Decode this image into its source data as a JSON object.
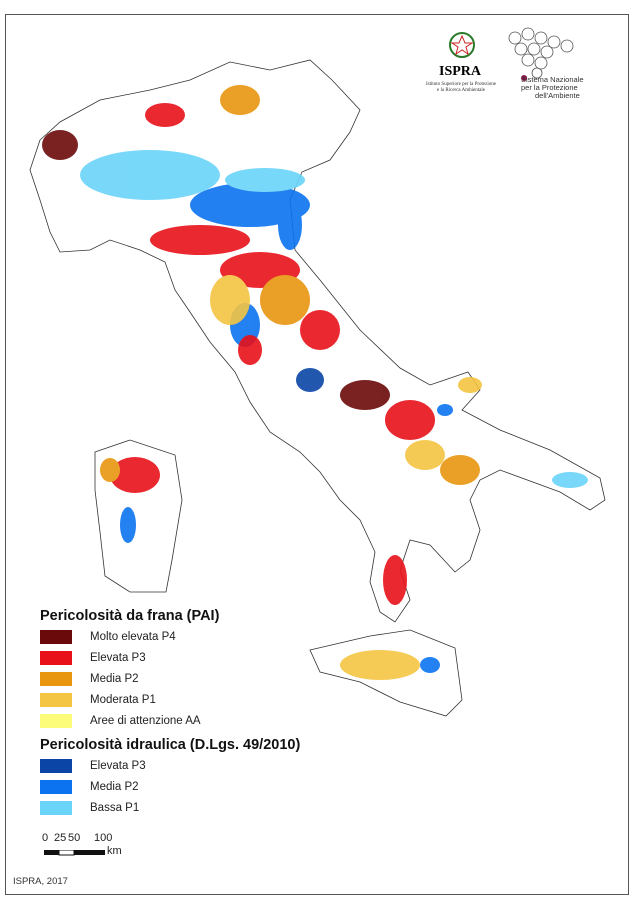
{
  "logos": {
    "ispra_name": "ISPRA",
    "ispra_subtitle_line1": "Istituto Superiore per la Protezione",
    "ispra_subtitle_line2": "e la Ricerca Ambientale",
    "snpa_line1": "Sistema Nazionale",
    "snpa_line2": "per la Protezione",
    "snpa_line3": "dell'Ambiente"
  },
  "legend": {
    "landslide_title": "Pericolosità da frana (PAI)",
    "landslide_items": [
      {
        "label": "Molto elevata P4",
        "color": "#6b0a0a"
      },
      {
        "label": "Elevata P3",
        "color": "#e8111a"
      },
      {
        "label": "Media P2",
        "color": "#e8960f"
      },
      {
        "label": "Moderata P1",
        "color": "#f4c542"
      },
      {
        "label": "Aree di attenzione AA",
        "color": "#fdfb7a"
      }
    ],
    "hydraulic_title": "Pericolosità idraulica (D.Lgs. 49/2010)",
    "hydraulic_items": [
      {
        "label": "Elevata P3",
        "color": "#0b45a6"
      },
      {
        "label": "Media P2",
        "color": "#0c73f0"
      },
      {
        "label": "Bassa P1",
        "color": "#6ad4fa"
      }
    ]
  },
  "scale": {
    "ticks": [
      "0",
      "25",
      "50",
      "100"
    ],
    "unit": "km"
  },
  "footer": "ISPRA, 2017"
}
